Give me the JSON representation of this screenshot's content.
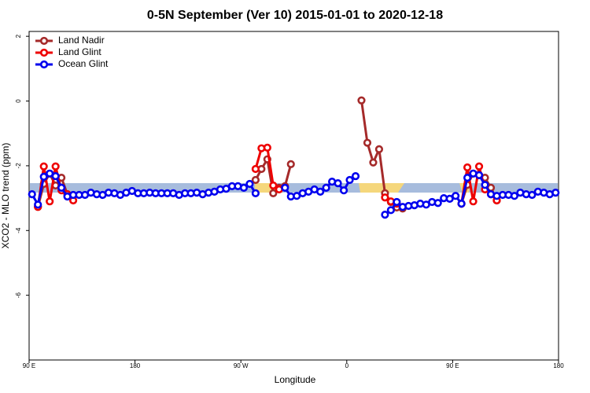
{
  "chart_data": {
    "type": "line",
    "title": "0-5N September (Ver 10)   2015-01-01 to 2020-12-18",
    "x_label": "Longitude",
    "y_label": "XCO2 - MLO trend (ppm)",
    "xlim": [
      90,
      540
    ],
    "xticks": [
      {
        "value": 90,
        "label": "90 E"
      },
      180,
      {
        "value": 270,
        "label": "90 W"
      },
      {
        "value": 360,
        "label": "0"
      },
      {
        "value": 450,
        "label": "90 E"
      },
      {
        "value": 540,
        "label": "180"
      }
    ],
    "ylim": [
      -8,
      2.15
    ],
    "yticks": [
      2,
      0,
      -2,
      -4,
      -6
    ],
    "legend": "top-left",
    "x": [
      92.5,
      97.5,
      102.5,
      107.5,
      112.5,
      117.5,
      122.5,
      127.5,
      132.5,
      137.5,
      142.5,
      147.5,
      152.5,
      157.5,
      162.5,
      167.5,
      172.5,
      177.5,
      182.5,
      187.5,
      192.5,
      197.5,
      202.5,
      207.5,
      212.5,
      217.5,
      222.5,
      227.5,
      232.5,
      237.5,
      242.5,
      247.5,
      252.5,
      257.5,
      262.5,
      267.5,
      272.5,
      277.5,
      282.5,
      287.5,
      292.5,
      297.5,
      302.5,
      307.5,
      312.5,
      317.5,
      322.5,
      327.5,
      332.5,
      337.5,
      342.5,
      347.5,
      352.5,
      357.5,
      362.5,
      367.5,
      372.5,
      377.5,
      382.5,
      387.5,
      392.5,
      397.5,
      402.5,
      407.5,
      412.5,
      417.5,
      422.5,
      427.5,
      432.5,
      437.5,
      442.5,
      447.5,
      452.5,
      457.5,
      462.5,
      467.5,
      472.5,
      477.5,
      482.5,
      487.5,
      492.5,
      497.5,
      502.5,
      507.5,
      512.5,
      517.5,
      522.5,
      527.5,
      532.5,
      537.5
    ],
    "series": [
      {
        "name": "Land Nadir",
        "color": "#a52a2a",
        "values": [
          null,
          -3.27,
          -2.56,
          -2.24,
          -2.61,
          -2.37,
          -2.88,
          null,
          null,
          null,
          null,
          null,
          null,
          null,
          null,
          null,
          null,
          null,
          null,
          null,
          null,
          null,
          null,
          null,
          null,
          null,
          null,
          null,
          null,
          null,
          null,
          null,
          null,
          null,
          null,
          null,
          null,
          null,
          -2.44,
          -2.1,
          -1.8,
          -2.85,
          -2.68,
          -2.63,
          -1.95,
          null,
          null,
          null,
          null,
          null,
          null,
          null,
          null,
          null,
          null,
          null,
          0.02,
          -1.29,
          -1.9,
          -1.49,
          -2.85,
          -3.12,
          -3.29,
          -3.32,
          null,
          null,
          null,
          null,
          null,
          null,
          null,
          null,
          null,
          -3.17,
          -2.59,
          -2.24,
          -2.29,
          -2.37,
          -2.68,
          -3.07,
          null,
          null,
          null,
          null,
          null,
          null,
          null,
          null,
          null,
          null
        ]
      },
      {
        "name": "Land Glint",
        "color": "#ee0000",
        "values": [
          null,
          -3.27,
          -2.02,
          -3.1,
          -2.02,
          -2.76,
          -2.88,
          -3.07,
          null,
          null,
          null,
          null,
          null,
          null,
          null,
          null,
          null,
          null,
          null,
          null,
          null,
          null,
          null,
          null,
          null,
          null,
          null,
          null,
          null,
          null,
          null,
          null,
          null,
          null,
          null,
          null,
          null,
          null,
          -2.1,
          -1.46,
          -1.44,
          -2.61,
          -2.73,
          null,
          null,
          null,
          null,
          null,
          null,
          null,
          null,
          null,
          null,
          null,
          null,
          null,
          null,
          null,
          null,
          null,
          -2.98,
          -3.1,
          -3.17,
          null,
          null,
          null,
          null,
          null,
          null,
          null,
          null,
          null,
          null,
          -3.17,
          -2.05,
          -3.1,
          -2.02,
          -2.73,
          -2.88,
          -3.07,
          null,
          null,
          null,
          null,
          null,
          null,
          null,
          null,
          null,
          null
        ]
      },
      {
        "name": "Ocean Glint",
        "color": "#0000ee",
        "values": [
          -2.88,
          -3.2,
          -2.34,
          -2.24,
          -2.32,
          -2.68,
          -2.95,
          -2.9,
          -2.9,
          -2.9,
          -2.83,
          -2.88,
          -2.9,
          -2.83,
          -2.85,
          -2.9,
          -2.83,
          -2.78,
          -2.85,
          -2.85,
          -2.83,
          -2.85,
          -2.85,
          -2.85,
          -2.85,
          -2.9,
          -2.85,
          -2.85,
          -2.83,
          -2.88,
          -2.83,
          -2.8,
          -2.73,
          -2.71,
          -2.63,
          -2.63,
          -2.68,
          -2.56,
          -2.85,
          null,
          null,
          null,
          null,
          -2.68,
          -2.95,
          -2.93,
          -2.85,
          -2.8,
          -2.73,
          -2.8,
          -2.68,
          -2.49,
          -2.54,
          -2.76,
          -2.44,
          -2.32,
          null,
          null,
          null,
          null,
          -3.51,
          -3.37,
          -3.12,
          -3.27,
          -3.24,
          -3.22,
          -3.17,
          -3.2,
          -3.12,
          -3.15,
          -3.0,
          -3.02,
          -2.93,
          -3.17,
          -2.37,
          -2.24,
          -2.29,
          -2.59,
          -2.88,
          -2.93,
          -2.9,
          -2.9,
          -2.93,
          -2.83,
          -2.88,
          -2.9,
          -2.8,
          -2.83,
          -2.88,
          -2.83
        ]
      }
    ]
  }
}
